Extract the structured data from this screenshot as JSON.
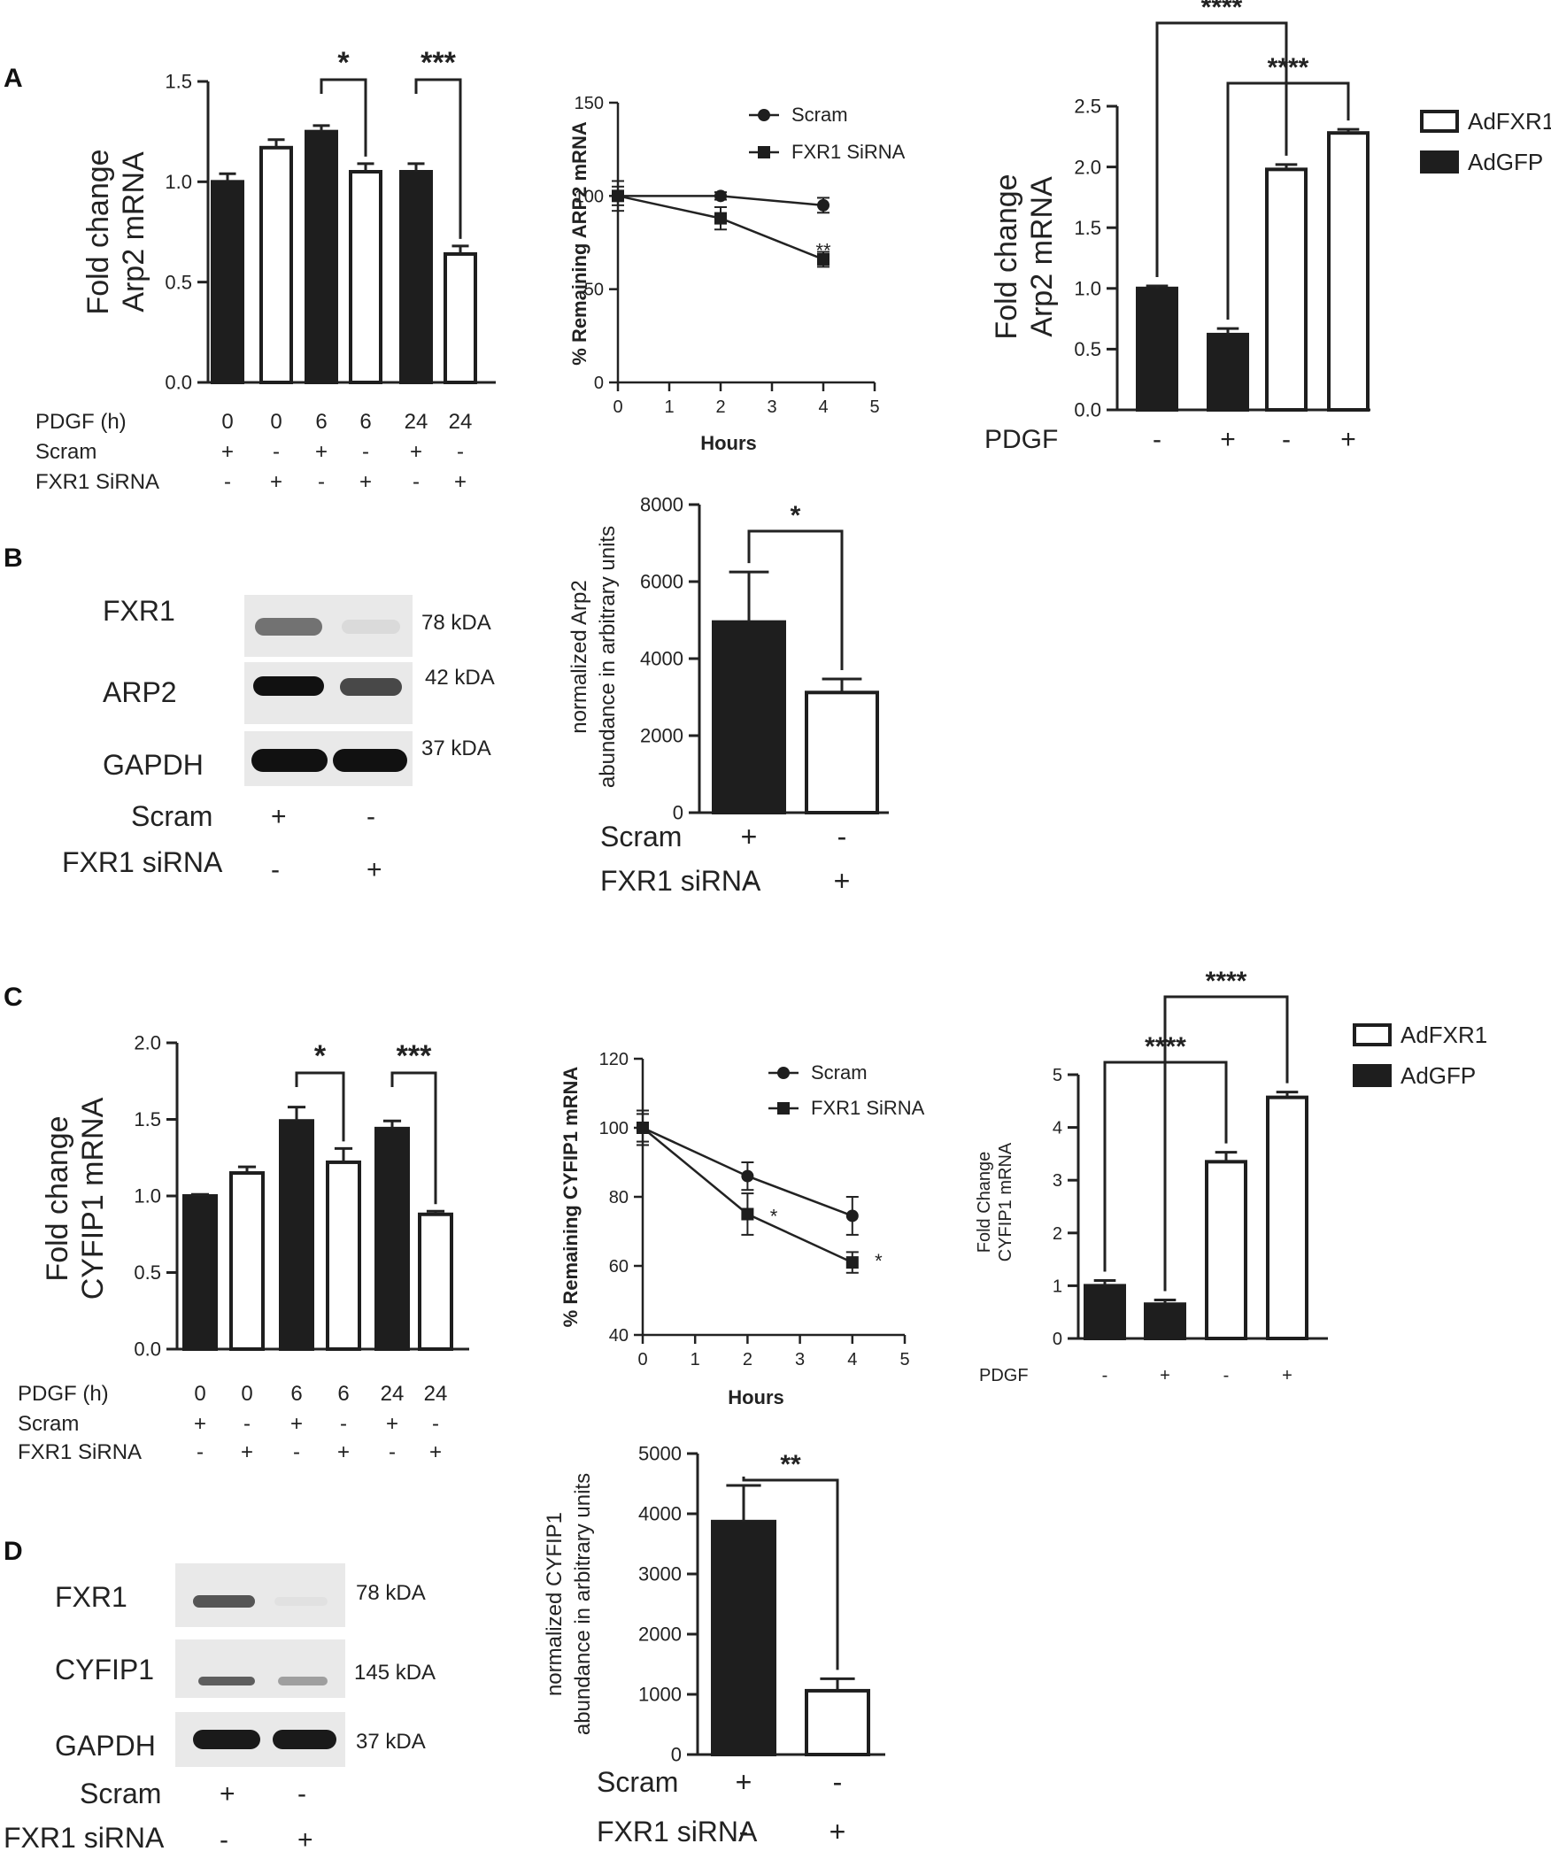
{
  "panel_letters": [
    "A",
    "B",
    "C",
    "D"
  ],
  "colors": {
    "filled": "#1e1e1e",
    "open": "#ffffff",
    "axis": "#222222",
    "text": "#222222"
  },
  "chart_data": [
    {
      "id": "A1",
      "type": "bar",
      "ylabel": [
        "Fold change",
        "Arp2 mRNA"
      ],
      "ylim": [
        0,
        1.5
      ],
      "yticks": [
        0.0,
        0.5,
        1.0,
        1.5
      ],
      "ytick_labels": [
        "0.0",
        "0.5",
        "1.0",
        "1.5"
      ],
      "values": [
        1.0,
        1.17,
        1.25,
        1.05,
        1.05,
        0.64
      ],
      "errors": [
        0.04,
        0.04,
        0.03,
        0.04,
        0.04,
        0.04
      ],
      "fills": [
        "filled",
        "open",
        "filled",
        "open",
        "filled",
        "open"
      ],
      "condition_rows": [
        {
          "label": "PDGF (h)",
          "values": [
            "0",
            "0",
            "6",
            "6",
            "24",
            "24"
          ]
        },
        {
          "label": "Scram",
          "values": [
            "+",
            "-",
            "+",
            "-",
            "+",
            "-"
          ]
        },
        {
          "label": "FXR1 SiRNA",
          "values": [
            "-",
            "+",
            "-",
            "+",
            "-",
            "+"
          ]
        }
      ],
      "significance": [
        {
          "from": 2,
          "to": 3,
          "label": "*"
        },
        {
          "from": 4,
          "to": 5,
          "label": "***"
        }
      ]
    },
    {
      "id": "A2",
      "type": "line",
      "ylabel": "% Remaining ARP2 mRNA",
      "xlabel": "Hours",
      "xlim": [
        0,
        5
      ],
      "ylim": [
        0,
        150
      ],
      "xticks": [
        0,
        1,
        2,
        3,
        4,
        5
      ],
      "xtick_labels": [
        "0",
        "1",
        "2",
        "3",
        "4",
        "5"
      ],
      "yticks": [
        0,
        50,
        100,
        150
      ],
      "ytick_labels": [
        "0",
        "50",
        "100",
        "150"
      ],
      "series": [
        {
          "name": "Scram",
          "marker": "circle",
          "x": [
            0,
            2,
            4
          ],
          "y": [
            100,
            100,
            95
          ],
          "err": [
            8,
            2,
            4
          ]
        },
        {
          "name": "FXR1 SiRNA",
          "marker": "square",
          "x": [
            0,
            2,
            4
          ],
          "y": [
            100,
            88,
            66
          ],
          "err": [
            5,
            6,
            4
          ]
        }
      ],
      "annotations": [
        {
          "x": 4,
          "y": 72,
          "label": "**"
        }
      ]
    },
    {
      "id": "A3",
      "type": "bar",
      "ylabel": [
        "Fold change",
        "Arp2 mRNA"
      ],
      "ylim": [
        0,
        2.5
      ],
      "yticks": [
        0.0,
        0.5,
        1.0,
        1.5,
        2.0,
        2.5
      ],
      "ytick_labels": [
        "0.0",
        "0.5",
        "1.0",
        "1.5",
        "2.0",
        "2.5"
      ],
      "values": [
        1.0,
        0.62,
        1.98,
        2.28
      ],
      "errors": [
        0.02,
        0.05,
        0.04,
        0.03
      ],
      "fills": [
        "filled",
        "filled",
        "open",
        "open"
      ],
      "condition_rows": [
        {
          "label": "PDGF",
          "values": [
            "-",
            "+",
            "-",
            "+"
          ]
        }
      ],
      "legend": [
        {
          "name": "AdFXR1",
          "fill": "open"
        },
        {
          "name": "AdGFP",
          "fill": "filled"
        }
      ],
      "legend_position": "right",
      "significance": [
        {
          "from": 0,
          "to": 2,
          "label": "****"
        },
        {
          "from": 1,
          "to": 3,
          "label": "****"
        }
      ]
    },
    {
      "id": "B2",
      "type": "bar",
      "ylabel": [
        "normalized Arp2",
        "abundance in arbitrary units"
      ],
      "ylim": [
        0,
        8000
      ],
      "yticks": [
        0,
        2000,
        4000,
        6000,
        8000
      ],
      "ytick_labels": [
        "0",
        "2000",
        "4000",
        "6000",
        "8000"
      ],
      "values": [
        4950,
        3120
      ],
      "errors": [
        1300,
        350
      ],
      "fills": [
        "filled",
        "open"
      ],
      "condition_rows": [
        {
          "label": "Scram",
          "values": [
            "+",
            "-"
          ]
        },
        {
          "label": "FXR1 siRNA",
          "values": [
            "-",
            "+"
          ]
        }
      ],
      "significance": [
        {
          "from": 0,
          "to": 1,
          "label": "*"
        }
      ]
    },
    {
      "id": "C1",
      "type": "bar",
      "ylabel": [
        "Fold change",
        "CYFIP1 mRNA"
      ],
      "ylim": [
        0,
        2.0
      ],
      "yticks": [
        0.0,
        0.5,
        1.0,
        1.5,
        2.0
      ],
      "ytick_labels": [
        "0.0",
        "0.5",
        "1.0",
        "1.5",
        "2.0"
      ],
      "values": [
        1.0,
        1.15,
        1.49,
        1.22,
        1.44,
        0.88
      ],
      "errors": [
        0.01,
        0.04,
        0.09,
        0.09,
        0.05,
        0.02
      ],
      "fills": [
        "filled",
        "open",
        "filled",
        "open",
        "filled",
        "open"
      ],
      "condition_rows": [
        {
          "label": "PDGF (h)",
          "values": [
            "0",
            "0",
            "6",
            "6",
            "24",
            "24"
          ]
        },
        {
          "label": "Scram",
          "values": [
            "+",
            "-",
            "+",
            "-",
            "+",
            "-"
          ]
        },
        {
          "label": "FXR1 SiRNA",
          "values": [
            "-",
            "+",
            "-",
            "+",
            "-",
            "+"
          ]
        }
      ],
      "significance": [
        {
          "from": 2,
          "to": 3,
          "label": "*"
        },
        {
          "from": 4,
          "to": 5,
          "label": "***"
        }
      ]
    },
    {
      "id": "C2",
      "type": "line",
      "ylabel": "% Remaining CYFIP1 mRNA",
      "xlabel": "Hours",
      "xlim": [
        0,
        5
      ],
      "ylim": [
        40,
        120
      ],
      "xticks": [
        0,
        1,
        2,
        3,
        4,
        5
      ],
      "xtick_labels": [
        "0",
        "1",
        "2",
        "3",
        "4",
        "5"
      ],
      "yticks": [
        40,
        60,
        80,
        100,
        120
      ],
      "ytick_labels": [
        "40",
        "60",
        "80",
        "100",
        "120"
      ],
      "series": [
        {
          "name": "Scram",
          "marker": "circle",
          "x": [
            0,
            2,
            4
          ],
          "y": [
            100,
            86,
            74.5
          ],
          "err": [
            5,
            4,
            5.5
          ]
        },
        {
          "name": "FXR1 SiRNA",
          "marker": "square",
          "x": [
            0,
            2,
            4
          ],
          "y": [
            100,
            75,
            61
          ],
          "err": [
            4,
            6,
            3
          ]
        }
      ],
      "annotations": [
        {
          "x": 2.5,
          "y": 75,
          "label": "*"
        },
        {
          "x": 4.5,
          "y": 62,
          "label": "*"
        }
      ]
    },
    {
      "id": "C3",
      "type": "bar",
      "ylabel": [
        "Fold Change",
        "CYFIP1 mRNA"
      ],
      "ylim": [
        0,
        5
      ],
      "yticks": [
        0,
        1,
        2,
        3,
        4,
        5
      ],
      "ytick_labels": [
        "0",
        "1",
        "2",
        "3",
        "4",
        "5"
      ],
      "values": [
        1.0,
        0.65,
        3.35,
        4.57
      ],
      "errors": [
        0.1,
        0.08,
        0.18,
        0.1
      ],
      "fills": [
        "filled",
        "filled",
        "open",
        "open"
      ],
      "condition_rows": [
        {
          "label": "PDGF",
          "values": [
            "-",
            "+",
            "-",
            "+"
          ]
        }
      ],
      "legend": [
        {
          "name": "AdFXR1",
          "fill": "open"
        },
        {
          "name": "AdGFP",
          "fill": "filled"
        }
      ],
      "legend_position": "right",
      "significance": [
        {
          "from": 0,
          "to": 2,
          "label": "****"
        },
        {
          "from": 1,
          "to": 3,
          "label": "****"
        }
      ]
    },
    {
      "id": "D2",
      "type": "bar",
      "ylabel": [
        "normalized CYFIP1",
        "abundance in arbitrary units"
      ],
      "ylim": [
        0,
        5000
      ],
      "yticks": [
        0,
        1000,
        2000,
        3000,
        4000,
        5000
      ],
      "ytick_labels": [
        "0",
        "1000",
        "2000",
        "3000",
        "4000",
        "5000"
      ],
      "values": [
        3870,
        1060
      ],
      "errors": [
        600,
        200
      ],
      "fills": [
        "filled",
        "open"
      ],
      "condition_rows": [
        {
          "label": "Scram",
          "values": [
            "+",
            "-"
          ]
        },
        {
          "label": "FXR1 siRNA",
          "values": [
            "-",
            "+"
          ]
        }
      ],
      "significance": [
        {
          "from": 0,
          "to": 1,
          "label": "**"
        }
      ]
    }
  ],
  "blots": [
    {
      "id": "B1",
      "rows": [
        {
          "label": "FXR1",
          "kda": "78 kDA",
          "bands": [
            0.75,
            0.08
          ]
        },
        {
          "label": "ARP2",
          "kda": "42 kDA",
          "bands": [
            1.0,
            0.75
          ]
        },
        {
          "label": "GAPDH",
          "kda": "37 kDA",
          "bands": [
            1.0,
            1.0
          ]
        }
      ],
      "conditions": [
        {
          "label": "Scram",
          "values": [
            "+",
            "-"
          ]
        },
        {
          "label": "FXR1 siRNA",
          "values": [
            "-",
            "+"
          ]
        }
      ]
    },
    {
      "id": "D1",
      "rows": [
        {
          "label": "FXR1",
          "kda": "78 kDA",
          "bands": [
            0.75,
            0.05
          ]
        },
        {
          "label": "CYFIP1",
          "kda": "145 kDA",
          "bands": [
            0.65,
            0.4
          ]
        },
        {
          "label": "GAPDH",
          "kda": "37 kDA",
          "bands": [
            1.0,
            1.0
          ]
        }
      ],
      "conditions": [
        {
          "label": "Scram",
          "values": [
            "+",
            "-"
          ]
        },
        {
          "label": "FXR1 siRNA",
          "values": [
            "-",
            "+"
          ]
        }
      ]
    }
  ]
}
